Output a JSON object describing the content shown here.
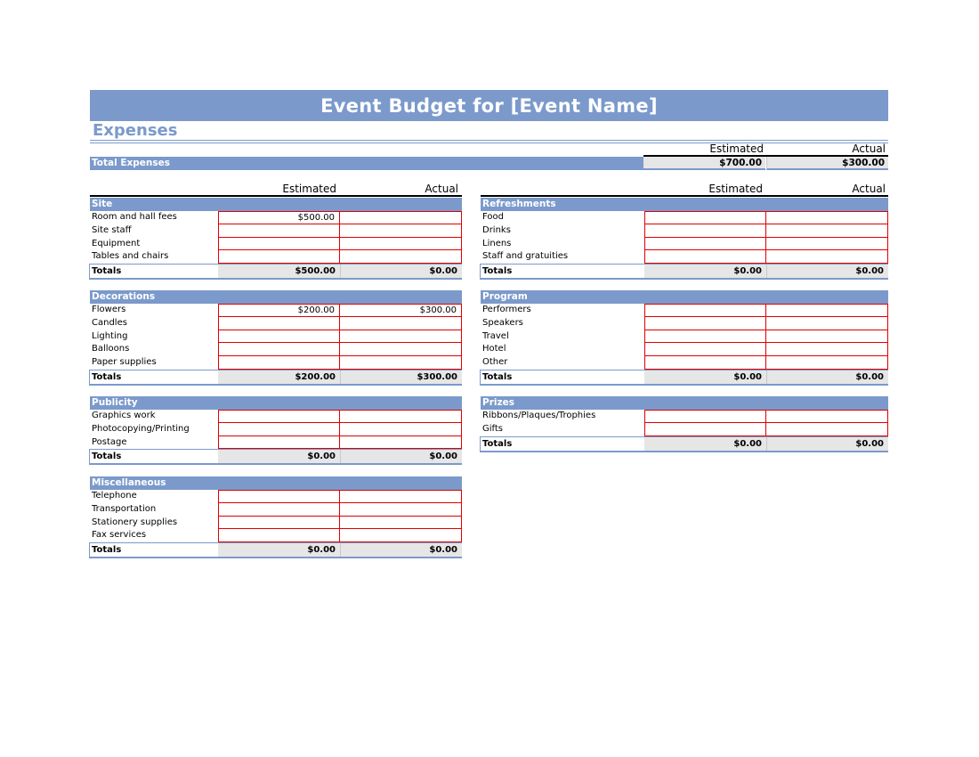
{
  "title": "Event Budget for [Event Name]",
  "section_title": "Expenses",
  "columns": {
    "estimated": "Estimated",
    "actual": "Actual"
  },
  "total_expenses": {
    "label": "Total Expenses",
    "estimated": "$700.00",
    "actual": "$300.00"
  },
  "totals_label": "Totals",
  "colors": {
    "accent": "#7b9acb",
    "input_border": "#e00000",
    "totals_fill": "#e6e6e6"
  },
  "categories": {
    "site": {
      "name": "Site",
      "rows": [
        {
          "label": "Room and hall fees",
          "estimated": "$500.00",
          "actual": ""
        },
        {
          "label": "Site staff",
          "estimated": "",
          "actual": ""
        },
        {
          "label": "Equipment",
          "estimated": "",
          "actual": ""
        },
        {
          "label": "Tables and chairs",
          "estimated": "",
          "actual": ""
        }
      ],
      "total_estimated": "$500.00",
      "total_actual": "$0.00"
    },
    "refreshments": {
      "name": "Refreshments",
      "rows": [
        {
          "label": "Food",
          "estimated": "",
          "actual": ""
        },
        {
          "label": "Drinks",
          "estimated": "",
          "actual": ""
        },
        {
          "label": "Linens",
          "estimated": "",
          "actual": ""
        },
        {
          "label": "Staff and gratuities",
          "estimated": "",
          "actual": ""
        }
      ],
      "total_estimated": "$0.00",
      "total_actual": "$0.00"
    },
    "decorations": {
      "name": "Decorations",
      "rows": [
        {
          "label": "Flowers",
          "estimated": "$200.00",
          "actual": "$300.00"
        },
        {
          "label": "Candles",
          "estimated": "",
          "actual": ""
        },
        {
          "label": "Lighting",
          "estimated": "",
          "actual": ""
        },
        {
          "label": "Balloons",
          "estimated": "",
          "actual": ""
        },
        {
          "label": "Paper supplies",
          "estimated": "",
          "actual": ""
        }
      ],
      "total_estimated": "$200.00",
      "total_actual": "$300.00"
    },
    "program": {
      "name": "Program",
      "rows": [
        {
          "label": "Performers",
          "estimated": "",
          "actual": ""
        },
        {
          "label": "Speakers",
          "estimated": "",
          "actual": ""
        },
        {
          "label": "Travel",
          "estimated": "",
          "actual": ""
        },
        {
          "label": "Hotel",
          "estimated": "",
          "actual": ""
        },
        {
          "label": "Other",
          "estimated": "",
          "actual": ""
        }
      ],
      "total_estimated": "$0.00",
      "total_actual": "$0.00"
    },
    "publicity": {
      "name": "Publicity",
      "rows": [
        {
          "label": "Graphics work",
          "estimated": "",
          "actual": ""
        },
        {
          "label": "Photocopying/Printing",
          "estimated": "",
          "actual": ""
        },
        {
          "label": "Postage",
          "estimated": "",
          "actual": ""
        }
      ],
      "total_estimated": "$0.00",
      "total_actual": "$0.00"
    },
    "prizes": {
      "name": "Prizes",
      "rows": [
        {
          "label": "Ribbons/Plaques/Trophies",
          "estimated": "",
          "actual": ""
        },
        {
          "label": "Gifts",
          "estimated": "",
          "actual": ""
        }
      ],
      "total_estimated": "$0.00",
      "total_actual": "$0.00"
    },
    "miscellaneous": {
      "name": "Miscellaneous",
      "rows": [
        {
          "label": "Telephone",
          "estimated": "",
          "actual": ""
        },
        {
          "label": "Transportation",
          "estimated": "",
          "actual": ""
        },
        {
          "label": "Stationery supplies",
          "estimated": "",
          "actual": ""
        },
        {
          "label": "Fax services",
          "estimated": "",
          "actual": ""
        }
      ],
      "total_estimated": "$0.00",
      "total_actual": "$0.00"
    }
  }
}
